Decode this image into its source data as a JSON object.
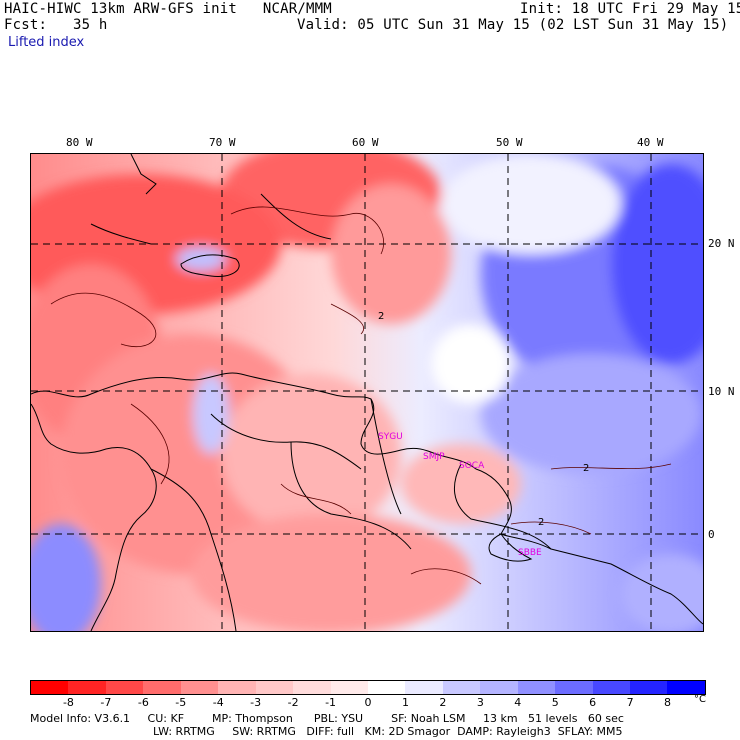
{
  "header": {
    "line1_left": "HAIC-HIWC 13km ARW-GFS init   NCAR/MMM",
    "line1_right": "Init: 18 UTC Fri 29 May 15",
    "line2_left": "Fcst:   35 h",
    "line2_right": "Valid: 05 UTC Sun 31 May 15 (02 LST Sun 31 May 15)",
    "field": "Lifted index"
  },
  "map": {
    "lon_labels": [
      "80 W",
      "70 W",
      "60 W",
      "50 W",
      "40 W"
    ],
    "lat_labels": [
      "20 N",
      "10 N",
      "0"
    ],
    "stations": [
      "SYGU",
      "SMJP",
      "SOCA",
      "SBBE"
    ],
    "contour_label": "2"
  },
  "colorbar": {
    "colors": [
      "#ff0000",
      "#ff2424",
      "#ff4848",
      "#ff6c6c",
      "#ff9090",
      "#ffb4b4",
      "#ffc8c8",
      "#ffdcdc",
      "#ffeaea",
      "#ffffff",
      "#eaeaff",
      "#c8c8ff",
      "#b4b4ff",
      "#9090ff",
      "#6c6cff",
      "#4848ff",
      "#2424ff",
      "#0000ff"
    ],
    "ticks": [
      "-8",
      "-7",
      "-6",
      "-5",
      "-4",
      "-3",
      "-2",
      "-1",
      "0",
      "1",
      "2",
      "3",
      "4",
      "5",
      "6",
      "7",
      "8"
    ],
    "unit": "°C"
  },
  "footer": {
    "line1": "Model Info: V3.6.1     CU: KF        MP: Thompson      PBL: YSU        SF: Noah LSM     13 km   51 levels   60 sec",
    "line2": "LW: RRTMG     SW: RRTMG   DIFF: full   KM: 2D Smagor  DAMP: Rayleigh3  SFLAY: MM5"
  }
}
